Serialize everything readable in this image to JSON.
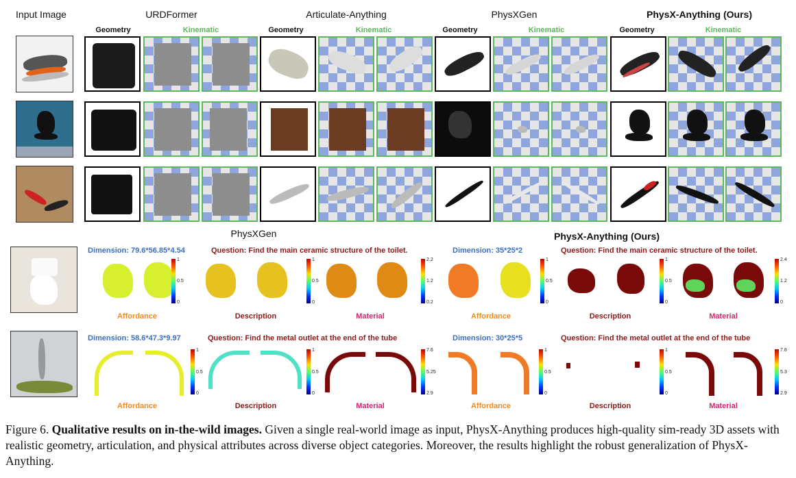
{
  "headers": {
    "input_image": "Input Image",
    "urdformer": "URDFormer",
    "articulate_anything": "Articulate-Anything",
    "physxgen": "PhysXGen",
    "ours": "PhysX-Anything (Ours)"
  },
  "subheaders": {
    "geometry": "Geometry",
    "kinematic": "Kinematic"
  },
  "lower": {
    "physxgen": "PhysXGen",
    "ours": "PhysX-Anything (Ours)",
    "row1": {
      "dim_physxgen": "Dimension: 79.6*56.85*4.54",
      "question_physxgen": "Question: Find the main ceramic structure of the toilet.",
      "dim_ours": "Dimension: 35*25*2",
      "question_ours": "Question: Find the main ceramic structure of the toilet."
    },
    "row2": {
      "dim_physxgen": "Dimension: 58.6*47.3*9.97",
      "question_physxgen": "Question: Find the metal outlet at the end of the tube",
      "dim_ours": "Dimension: 30*25*5",
      "question_ours": "Question: Find the metal outlet at the end of the tube"
    },
    "labels": {
      "affordance": "Affordance",
      "description": "Description",
      "material": "Material"
    },
    "ticks": {
      "unit": [
        "1",
        "0.5",
        "0"
      ],
      "mat_r1_pg": [
        "2.2",
        "1.2",
        "0.2"
      ],
      "mat_r1_ours": [
        "2.4",
        "1.2",
        "0"
      ],
      "mat_r2_pg": [
        "7.6",
        "5.25",
        "2.9"
      ],
      "mat_r2_ours": [
        "7.8",
        "5.3",
        "2.9"
      ]
    }
  },
  "caption": {
    "prefix": "Figure 6.",
    "title": "Qualitative results on in-the-wild images.",
    "body": " Given a single real-world image as input, PhysX-Anything produces high-quality sim-ready 3D assets with realistic geometry, articulation, and physical attributes across diverse object categories. Moreover, the results highlight the robust generalization of PhysX-Anything."
  },
  "colors": {
    "kinematic_green": "#5cb85c",
    "dimension_blue": "#3a6fc4",
    "affordance_orange": "#f08a1c",
    "description_maroon": "#8b1a1a",
    "material_magenta": "#d6246e"
  }
}
